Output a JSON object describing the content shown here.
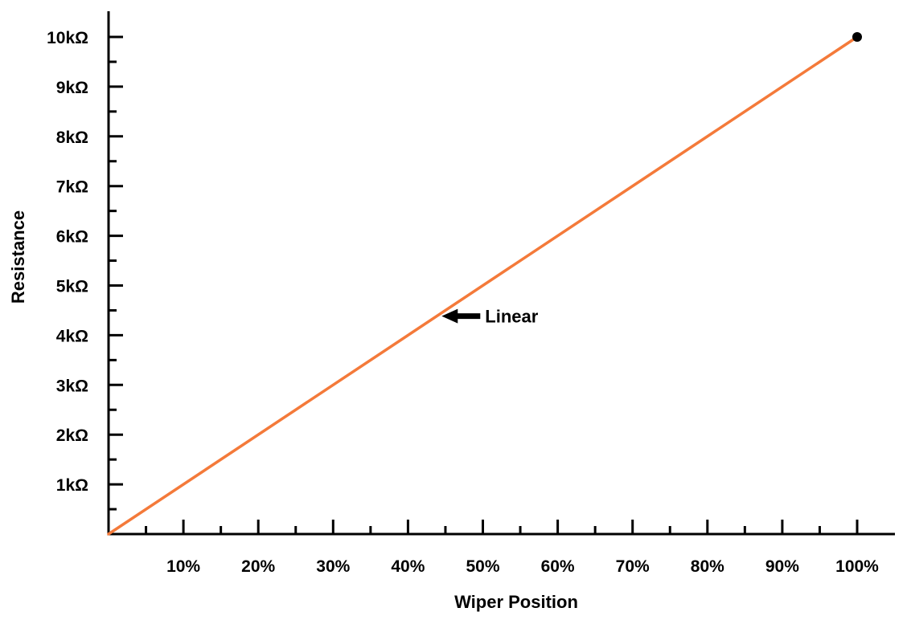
{
  "chart_data": {
    "type": "line",
    "xlabel": "Wiper Position",
    "ylabel": "Resistance",
    "xlim": [
      0,
      105
    ],
    "ylim": [
      0,
      10.5
    ],
    "x_ticks": [
      10,
      20,
      30,
      40,
      50,
      60,
      70,
      80,
      90,
      100
    ],
    "x_tick_labels": [
      "10%",
      "20%",
      "30%",
      "40%",
      "50%",
      "60%",
      "70%",
      "80%",
      "90%",
      "100%"
    ],
    "y_ticks": [
      1,
      2,
      3,
      4,
      5,
      6,
      7,
      8,
      9,
      10
    ],
    "y_tick_labels": [
      "1kΩ",
      "2kΩ",
      "3kΩ",
      "4kΩ",
      "5kΩ",
      "6kΩ",
      "7kΩ",
      "8kΩ",
      "9kΩ",
      "10kΩ"
    ],
    "grid": false,
    "series": [
      {
        "name": "Linear",
        "color": "#f47a3a",
        "x": [
          0,
          100
        ],
        "y": [
          0,
          10
        ]
      }
    ],
    "end_marker": {
      "x": 100,
      "y": 10,
      "color": "#000000"
    },
    "annotation": {
      "text": "Linear",
      "points_to": {
        "x": 44.5,
        "y": 4.4
      }
    }
  }
}
